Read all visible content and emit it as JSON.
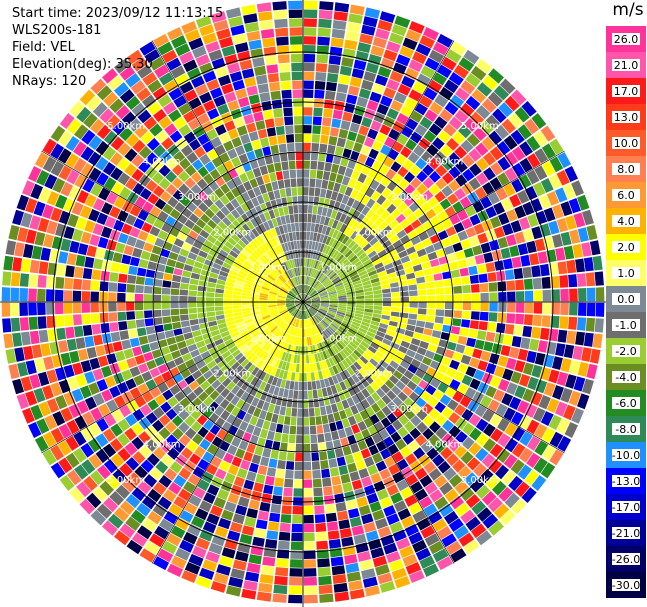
{
  "info": {
    "start_time": "Start time: 2023/09/12 11:13:15",
    "instrument": "WLS200s-181",
    "field": "Field: VEL",
    "elevation": "Elevation(deg): 35.30",
    "nrays": "NRays: 120"
  },
  "colorbar": {
    "unit": "m/s",
    "ticks": [
      "26.0",
      "21.0",
      "17.0",
      "13.0",
      "10.0",
      "8.0",
      "6.0",
      "4.0",
      "2.0",
      "1.0",
      "0.0",
      "-1.0",
      "-2.0",
      "-4.0",
      "-6.0",
      "-8.0",
      "-10.0",
      "-13.0",
      "-17.0",
      "-21.0",
      "-26.0",
      "-30.0"
    ],
    "colors": [
      "#ff3399",
      "#ff55aa",
      "#ff1a1a",
      "#ff3b1a",
      "#ff5a2a",
      "#ff7f50",
      "#ff9933",
      "#ffb300",
      "#ffff00",
      "#ffff66",
      "#7d8a96",
      "#6e6e6e",
      "#9acd32",
      "#6b8e23",
      "#228b22",
      "#2e8b57",
      "#1e90ff",
      "#0000ff",
      "#0000cd",
      "#000099",
      "#000066",
      "#000044"
    ]
  },
  "chart_data": {
    "type": "ppi",
    "field": "VEL",
    "units": "m/s",
    "nrays": 120,
    "elevation_deg": 35.3,
    "range_rings_km": [
      "1.00km",
      "2.00km",
      "3.00km",
      "4.00km",
      "5.00km"
    ],
    "vlim": [
      -30.0,
      26.0
    ]
  }
}
